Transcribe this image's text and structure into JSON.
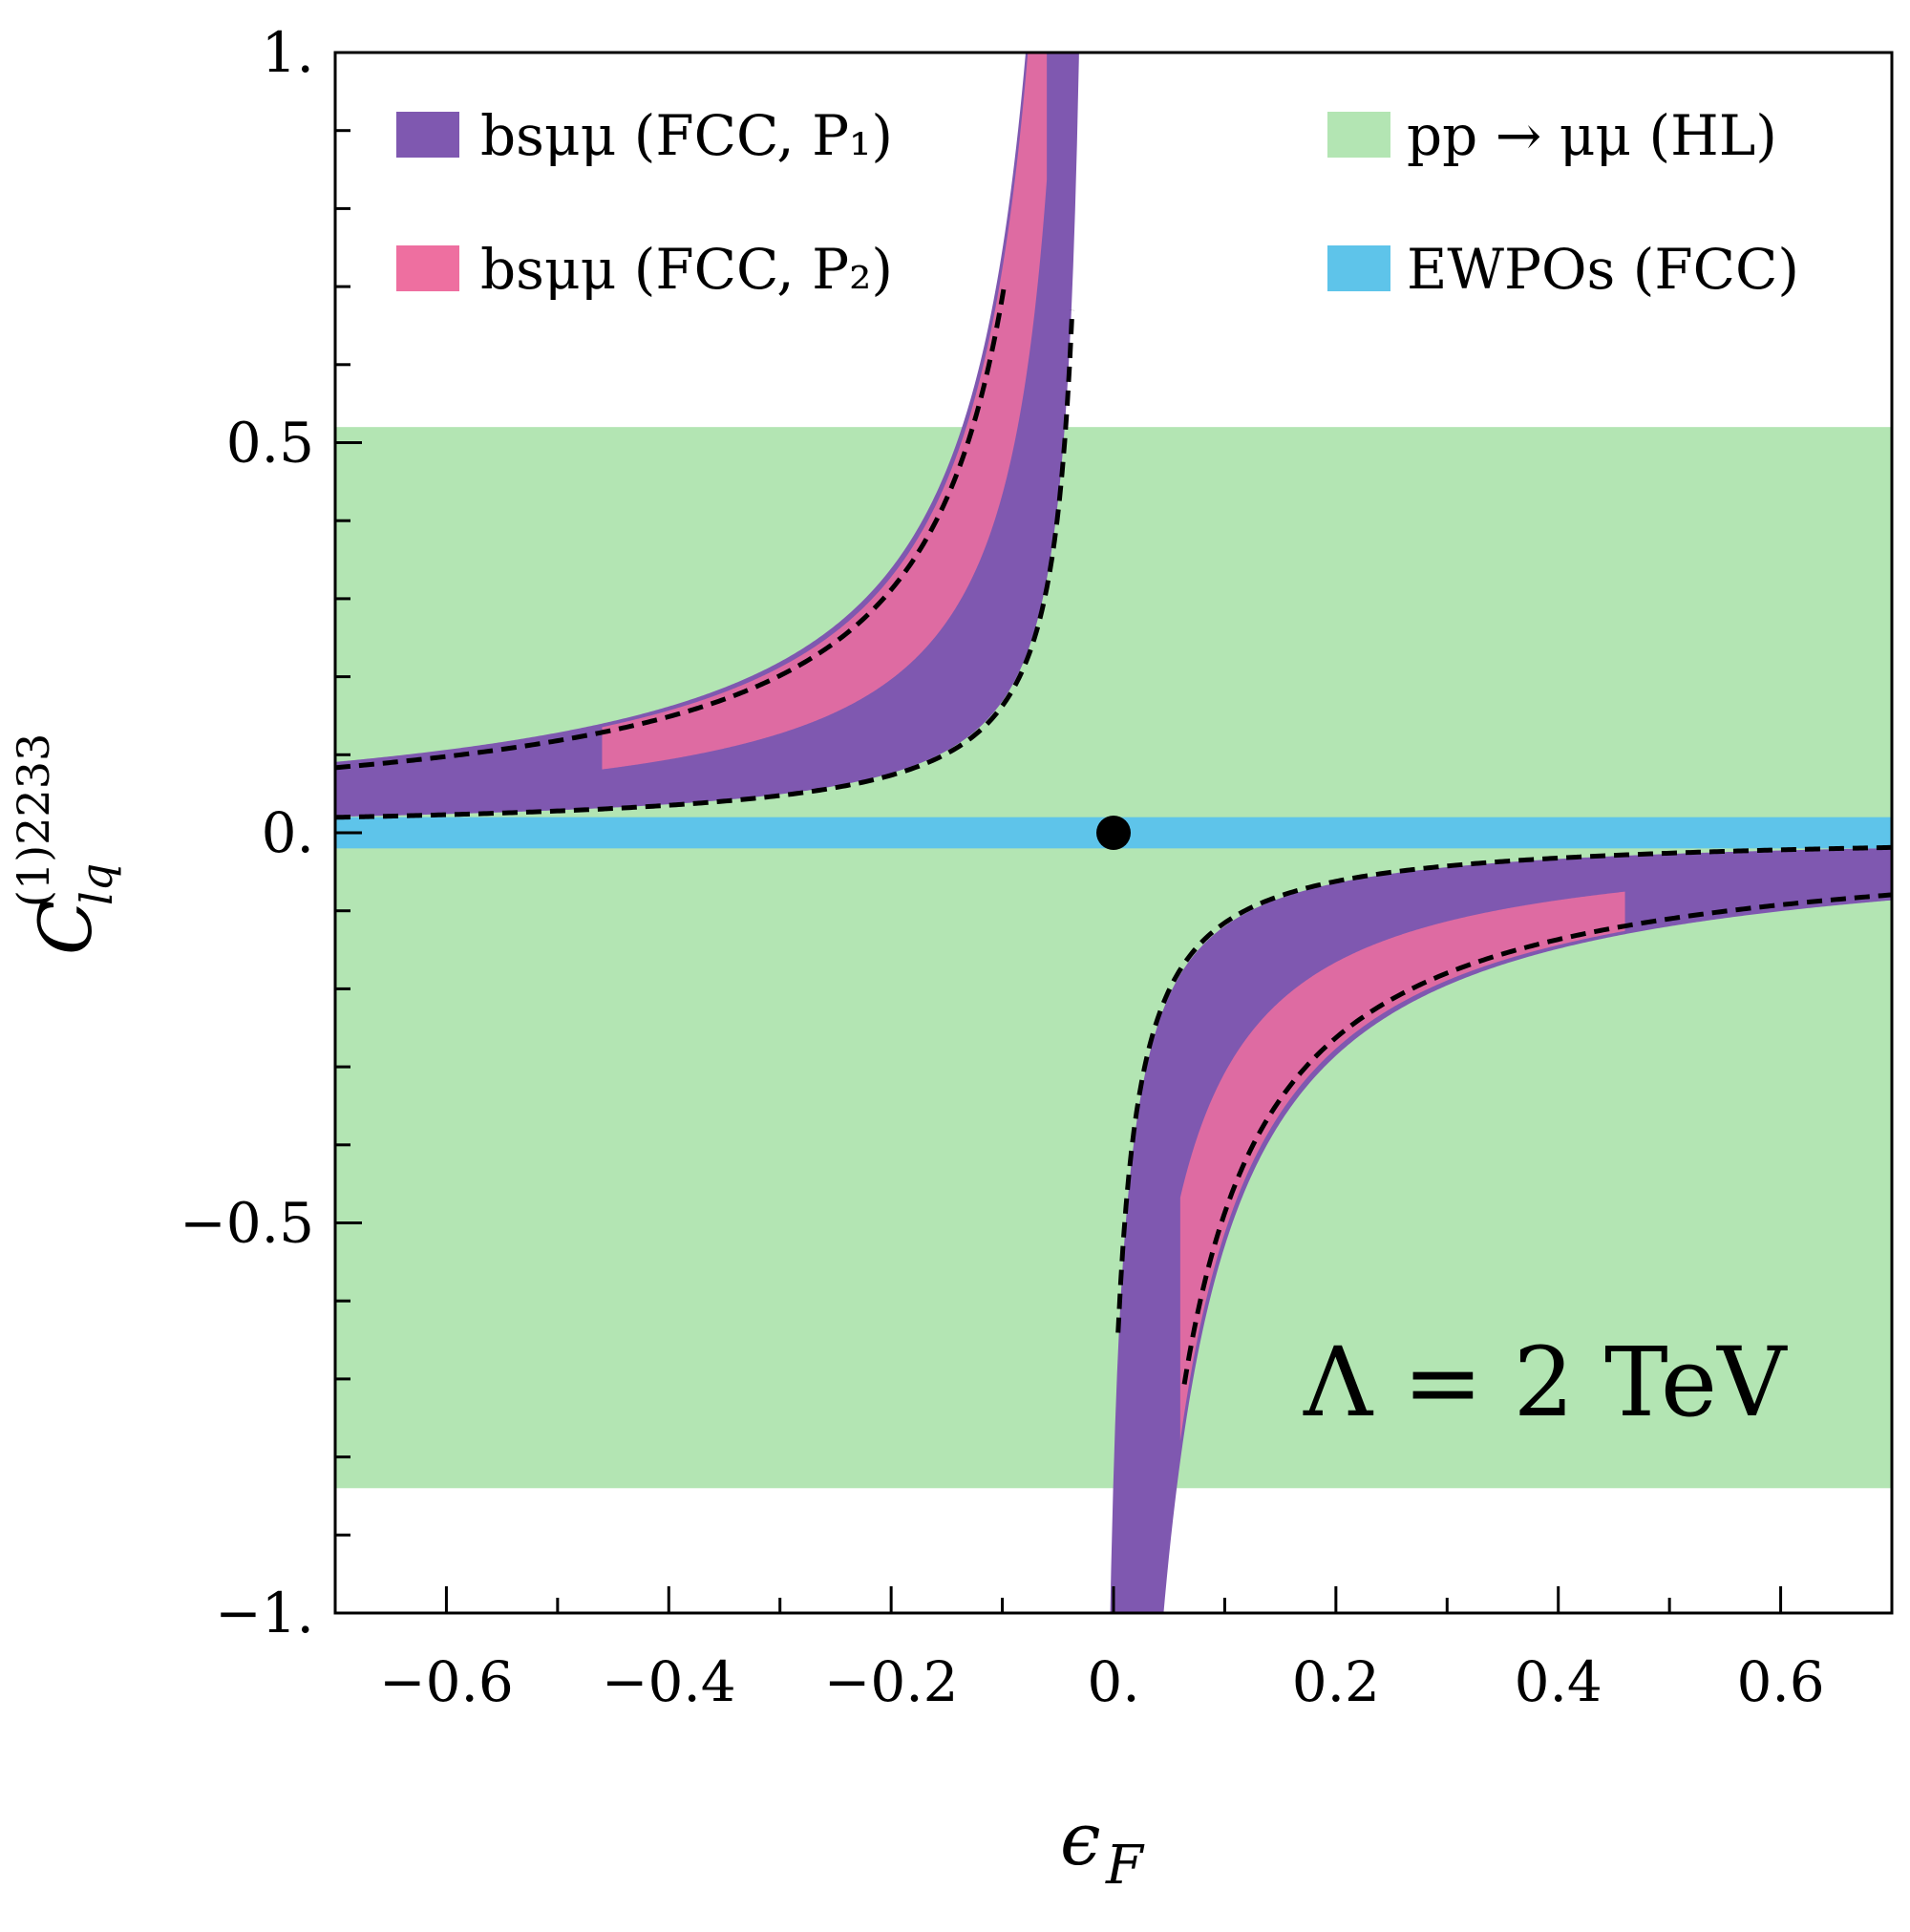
{
  "chart_data": {
    "type": "area",
    "title": "",
    "xlabel": "ϵ_F",
    "xlabel_main": "ϵ",
    "xlabel_sub": "F",
    "ylabel": "C_lq^(1)2233",
    "ylabel_main": "C",
    "ylabel_sub": "lq",
    "ylabel_sup": "(1)2233",
    "xlim": [
      -0.7,
      0.7
    ],
    "ylim": [
      -1.0,
      1.0
    ],
    "x_ticks": [
      -0.6,
      -0.4,
      -0.2,
      0.0,
      0.2,
      0.4,
      0.6
    ],
    "x_tick_labels": [
      "−0.6",
      "−0.4",
      "−0.2",
      "0.",
      "0.2",
      "0.4",
      "0.6"
    ],
    "y_ticks": [
      -1.0,
      -0.5,
      0.0,
      0.5,
      1.0
    ],
    "y_tick_labels": [
      "−1.",
      "−0.5",
      "0.",
      "0.5",
      "1."
    ],
    "annotation": "Λ = 2 TeV",
    "point": {
      "x": 0.0,
      "y": 0.0,
      "color": "#000000"
    },
    "legend": [
      {
        "label": "bsμμ (FCC, P₁)",
        "color": "#7f58b0"
      },
      {
        "label": "bsμμ (FCC, P₂)",
        "color": "#ee6fa0"
      },
      {
        "label": "pp → μμ (HL)",
        "color": "#b3e5b3"
      },
      {
        "label": "EWPOs (FCC)",
        "color": "#5ec4ea"
      }
    ],
    "series": [
      {
        "name": "pp → μμ (HL)",
        "kind": "hband",
        "y_min": -0.84,
        "y_max": 0.52,
        "color": "#b3e5b3"
      },
      {
        "name": "EWPOs (FCC)",
        "kind": "hband",
        "y_min": -0.02,
        "y_max": 0.02,
        "color": "#5ec4ea"
      },
      {
        "name": "bsμμ (FCC, P₁)",
        "kind": "hyperbolic-band",
        "k_min": 0.014,
        "k_max": 0.062,
        "x_pole": -0.017,
        "x_range_upper": [
          -0.7,
          0.0
        ],
        "x_range_lower": [
          0.0,
          0.7
        ],
        "color": "#7f58b0"
      },
      {
        "name": "bsμμ (FCC, P₂)",
        "kind": "hyperbolic-band",
        "k_min": 0.04,
        "k_max": 0.062,
        "x_pole": -0.017,
        "x_range_upper": [
          -0.46,
          -0.06
        ],
        "x_range_lower": [
          0.06,
          0.46
        ],
        "color": "#ee6fa0"
      },
      {
        "name": "boundary",
        "kind": "dashed-curve",
        "k_values": [
          0.0135,
          0.057
        ],
        "x_pole": -0.017,
        "y_range": [
          -0.71,
          0.71
        ],
        "color": "#000000"
      }
    ]
  }
}
